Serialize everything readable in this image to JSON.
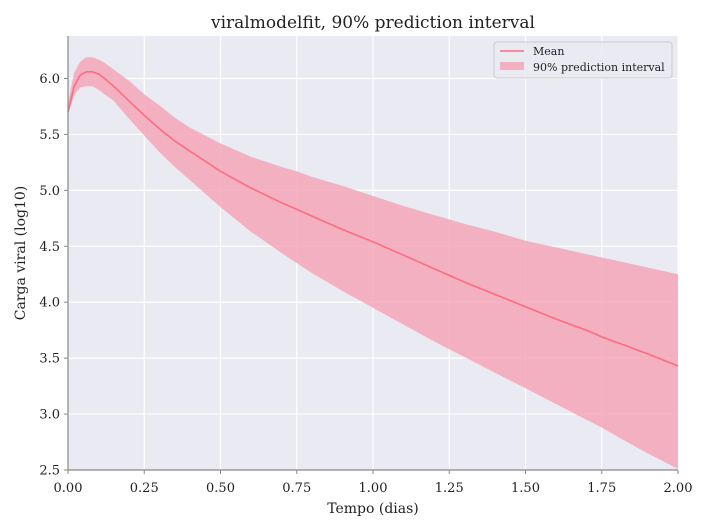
{
  "colors": {
    "background": "#ffffff",
    "plot_area": "#eaeaf2",
    "grid": "#ffffff",
    "mean_line": "#ff6b81",
    "interval_fill": "#f4a6b8",
    "axis_spine": "#888888",
    "text": "#222222"
  },
  "chart_data": {
    "type": "line",
    "title": "viralmodelfit, 90% prediction interval",
    "xlabel": "Tempo (dias)",
    "ylabel": "Carga viral (log10)",
    "xlim": [
      0.0,
      2.0
    ],
    "ylim": [
      2.5,
      6.38
    ],
    "x_ticks": [
      0.0,
      0.25,
      0.5,
      0.75,
      1.0,
      1.25,
      1.5,
      1.75,
      2.0
    ],
    "x_tick_labels": [
      "0.00",
      "0.25",
      "0.50",
      "0.75",
      "1.00",
      "1.25",
      "1.50",
      "1.75",
      "2.00"
    ],
    "y_ticks": [
      2.5,
      3.0,
      3.5,
      4.0,
      4.5,
      5.0,
      5.5,
      6.0
    ],
    "y_tick_labels": [
      "2.5",
      "3.0",
      "3.5",
      "4.0",
      "4.5",
      "5.0",
      "5.5",
      "6.0"
    ],
    "grid": true,
    "legend_position": "top-right",
    "legend": [
      "Mean",
      "90% prediction interval"
    ],
    "x": [
      0.0,
      0.02,
      0.04,
      0.06,
      0.08,
      0.1,
      0.12,
      0.15,
      0.2,
      0.25,
      0.3,
      0.35,
      0.4,
      0.5,
      0.6,
      0.7,
      0.75,
      0.8,
      0.9,
      1.0,
      1.1,
      1.2,
      1.25,
      1.3,
      1.4,
      1.5,
      1.6,
      1.7,
      1.75,
      1.8,
      1.9,
      2.0
    ],
    "series": [
      {
        "name": "Mean",
        "style": "line",
        "values": [
          5.7,
          5.93,
          6.03,
          6.06,
          6.06,
          6.04,
          6.0,
          5.93,
          5.8,
          5.67,
          5.55,
          5.44,
          5.35,
          5.17,
          5.02,
          4.89,
          4.83,
          4.77,
          4.65,
          4.54,
          4.42,
          4.3,
          4.24,
          4.18,
          4.07,
          3.96,
          3.85,
          3.75,
          3.69,
          3.64,
          3.54,
          3.43
        ]
      },
      {
        "name": "90% prediction interval",
        "style": "band",
        "upper": [
          5.78,
          6.05,
          6.15,
          6.19,
          6.19,
          6.17,
          6.14,
          6.08,
          5.98,
          5.86,
          5.76,
          5.65,
          5.56,
          5.42,
          5.3,
          5.21,
          5.17,
          5.12,
          5.04,
          4.95,
          4.86,
          4.78,
          4.74,
          4.7,
          4.63,
          4.55,
          4.49,
          4.43,
          4.4,
          4.37,
          4.31,
          4.25
        ],
        "lower": [
          5.68,
          5.85,
          5.92,
          5.93,
          5.93,
          5.9,
          5.86,
          5.8,
          5.64,
          5.49,
          5.34,
          5.21,
          5.09,
          4.85,
          4.63,
          4.44,
          4.35,
          4.26,
          4.1,
          3.95,
          3.8,
          3.65,
          3.58,
          3.51,
          3.37,
          3.23,
          3.09,
          2.95,
          2.88,
          2.8,
          2.65,
          2.51
        ]
      }
    ]
  }
}
